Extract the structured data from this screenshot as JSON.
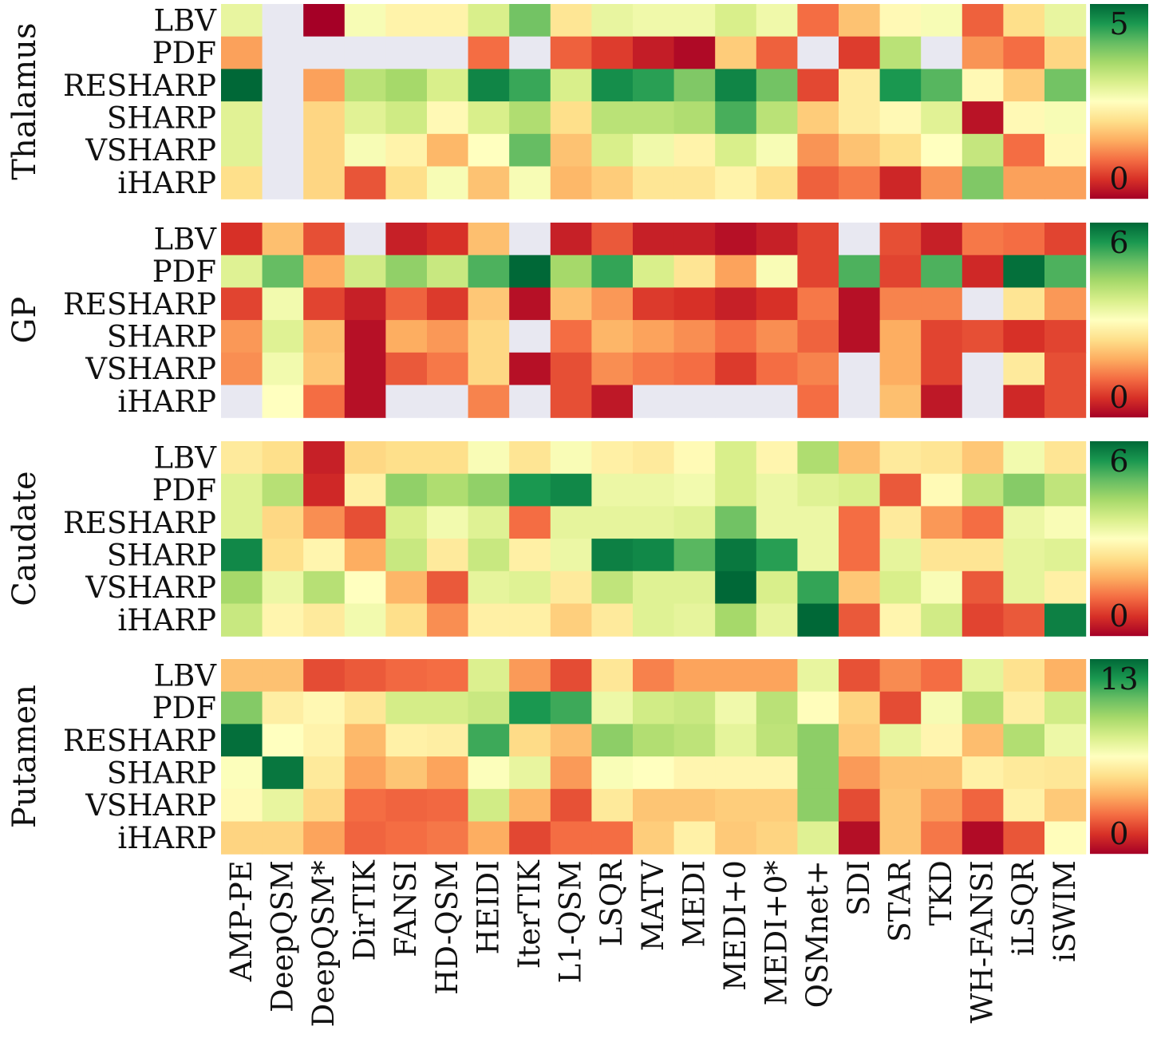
{
  "chart_data": {
    "type": "heatmap",
    "columns": [
      "AMP-PE",
      "DeepQSM",
      "DeepQSM*",
      "DirTIK",
      "FANSI",
      "HD-QSM",
      "HEIDI",
      "IterTIK",
      "L1-QSM",
      "LSQR",
      "MATV",
      "MEDI",
      "MEDI+0",
      "MEDI+0*",
      "QSMnet+",
      "SDI",
      "STAR",
      "TKD",
      "WH-FANSI",
      "iLSQR",
      "iSWIM"
    ],
    "rows": [
      "LBV",
      "PDF",
      "RESHARP",
      "SHARP",
      "VSHARP",
      "iHARP"
    ],
    "missing_color": "#e8e8f1",
    "colormap": [
      "#a50026",
      "#d73027",
      "#f46d43",
      "#fdae61",
      "#fee08b",
      "#ffffbf",
      "#d9ef8b",
      "#a6d96a",
      "#66bd63",
      "#1a9850",
      "#006837"
    ],
    "panels": [
      {
        "region": "Thalamus",
        "scale_max_label": "5",
        "scale_min_label": "0",
        "vmax": 5,
        "values": [
          [
            2.8,
            null,
            0.0,
            2.6,
            2.3,
            2.3,
            3.0,
            3.9,
            2.1,
            2.8,
            2.7,
            2.7,
            3.0,
            2.7,
            1.0,
            1.7,
            2.4,
            2.6,
            0.9,
            2.0,
            2.8
          ],
          [
            1.4,
            null,
            null,
            null,
            null,
            null,
            1.0,
            null,
            0.9,
            0.6,
            0.3,
            0.1,
            1.8,
            0.9,
            null,
            0.6,
            3.3,
            null,
            1.3,
            1.0,
            1.9
          ],
          [
            5.0,
            null,
            1.4,
            3.3,
            3.5,
            3.0,
            4.7,
            4.3,
            3.0,
            4.6,
            4.4,
            3.8,
            4.7,
            3.9,
            0.7,
            2.2,
            4.5,
            4.1,
            2.4,
            1.8,
            3.9
          ],
          [
            2.9,
            null,
            1.9,
            2.9,
            3.1,
            2.4,
            3.0,
            3.4,
            2.0,
            3.3,
            3.3,
            3.4,
            4.2,
            3.3,
            1.8,
            2.2,
            2.4,
            2.9,
            0.2,
            2.4,
            2.6
          ],
          [
            2.9,
            null,
            1.9,
            2.6,
            2.3,
            1.6,
            2.5,
            4.0,
            1.7,
            3.0,
            2.7,
            2.3,
            3.0,
            2.6,
            1.3,
            1.7,
            2.0,
            2.5,
            3.2,
            1.0,
            2.4
          ],
          [
            2.0,
            null,
            1.9,
            0.8,
            2.0,
            2.6,
            1.7,
            2.6,
            1.6,
            1.8,
            2.1,
            2.1,
            2.3,
            2.0,
            0.9,
            1.1,
            0.4,
            1.3,
            3.8,
            1.4,
            1.4
          ]
        ]
      },
      {
        "region": "GP",
        "scale_max_label": "6",
        "scale_min_label": "0",
        "vmax": 6,
        "values": [
          [
            0.6,
            2.0,
            0.9,
            null,
            0.4,
            0.6,
            2.0,
            null,
            0.4,
            1.0,
            0.4,
            0.4,
            0.2,
            0.4,
            0.8,
            null,
            0.9,
            0.4,
            1.3,
            1.2,
            0.8
          ],
          [
            3.5,
            4.8,
            1.8,
            3.7,
            4.4,
            3.8,
            5.0,
            6.0,
            4.2,
            5.2,
            3.6,
            2.5,
            1.7,
            3.1,
            0.8,
            5.0,
            0.8,
            5.0,
            0.5,
            5.9,
            5.0
          ],
          [
            0.8,
            3.2,
            0.8,
            0.4,
            1.1,
            0.7,
            2.1,
            0.2,
            2.0,
            1.6,
            0.7,
            0.6,
            0.4,
            0.6,
            1.3,
            0.2,
            1.4,
            1.4,
            null,
            2.5,
            1.6
          ],
          [
            1.6,
            3.5,
            2.0,
            0.2,
            1.8,
            1.6,
            2.3,
            null,
            1.2,
            1.9,
            1.7,
            1.5,
            1.2,
            1.5,
            1.1,
            0.2,
            1.8,
            0.8,
            0.9,
            0.6,
            0.8
          ],
          [
            1.5,
            3.2,
            2.1,
            0.2,
            1.0,
            1.3,
            2.3,
            0.2,
            0.9,
            1.5,
            1.3,
            1.2,
            0.7,
            1.2,
            1.4,
            null,
            1.8,
            0.8,
            null,
            2.6,
            0.9
          ],
          [
            null,
            3.0,
            1.2,
            0.2,
            null,
            null,
            1.4,
            null,
            0.9,
            0.3,
            null,
            null,
            null,
            null,
            1.2,
            null,
            2.0,
            0.3,
            null,
            0.5,
            0.9
          ]
        ]
      },
      {
        "region": "Caudate",
        "scale_max_label": "6",
        "scale_min_label": "0",
        "vmax": 6,
        "values": [
          [
            2.6,
            2.4,
            0.4,
            2.3,
            2.4,
            2.4,
            3.1,
            2.5,
            3.1,
            2.7,
            2.6,
            2.9,
            3.6,
            2.8,
            4.1,
            2.0,
            2.6,
            2.5,
            2.1,
            3.2,
            2.5
          ],
          [
            3.5,
            4.0,
            0.5,
            2.7,
            4.4,
            4.1,
            4.4,
            5.4,
            5.6,
            3.3,
            3.3,
            3.2,
            3.6,
            3.3,
            3.5,
            3.6,
            1.0,
            2.9,
            3.9,
            4.5,
            3.9
          ],
          [
            3.5,
            2.3,
            1.5,
            0.9,
            3.6,
            3.2,
            3.5,
            1.2,
            3.4,
            3.4,
            3.4,
            3.5,
            4.7,
            3.3,
            3.3,
            1.2,
            2.6,
            1.6,
            1.2,
            3.3,
            3.1
          ],
          [
            5.6,
            2.4,
            2.8,
            1.8,
            3.8,
            2.6,
            3.8,
            2.7,
            3.3,
            5.7,
            5.6,
            4.9,
            5.8,
            5.3,
            3.3,
            1.2,
            3.4,
            2.5,
            2.5,
            3.4,
            3.5
          ],
          [
            4.2,
            3.3,
            4.0,
            3.0,
            1.9,
            1.0,
            3.4,
            3.5,
            2.6,
            3.9,
            3.5,
            3.5,
            6.0,
            3.6,
            5.2,
            2.1,
            3.6,
            3.1,
            1.0,
            3.4,
            2.7
          ],
          [
            3.8,
            2.8,
            2.6,
            3.2,
            2.4,
            1.5,
            2.7,
            2.7,
            2.2,
            2.6,
            3.5,
            3.4,
            4.2,
            3.4,
            6.0,
            1.0,
            2.8,
            3.7,
            0.8,
            1.0,
            5.7
          ]
        ]
      },
      {
        "region": "Putamen",
        "scale_max_label": "13",
        "scale_min_label": "0",
        "vmax": 13,
        "values": [
          [
            4.4,
            4.4,
            1.9,
            2.2,
            2.5,
            2.6,
            7.7,
            3.5,
            1.9,
            5.5,
            3.0,
            3.7,
            3.7,
            3.7,
            7.3,
            2.0,
            3.2,
            2.6,
            7.4,
            5.3,
            4.0
          ],
          [
            9.8,
            5.8,
            6.2,
            5.5,
            7.9,
            7.9,
            8.2,
            11.7,
            11.1,
            7.1,
            8.0,
            8.2,
            7.0,
            8.6,
            6.4,
            4.9,
            1.9,
            6.8,
            8.8,
            5.8,
            8.0
          ],
          [
            12.8,
            6.5,
            6.0,
            4.2,
            5.9,
            5.8,
            11.1,
            5.1,
            4.3,
            9.6,
            8.8,
            8.5,
            7.4,
            8.5,
            9.6,
            4.6,
            7.3,
            6.1,
            4.3,
            8.8,
            7.1
          ],
          [
            6.6,
            12.6,
            5.6,
            3.7,
            4.5,
            3.7,
            6.6,
            7.3,
            3.5,
            6.7,
            6.5,
            6.1,
            6.1,
            6.1,
            9.6,
            3.5,
            4.4,
            4.4,
            5.9,
            5.6,
            5.5
          ],
          [
            6.3,
            7.3,
            5.0,
            2.6,
            2.4,
            2.5,
            8.0,
            4.1,
            2.0,
            5.6,
            4.5,
            4.5,
            4.7,
            4.7,
            9.6,
            1.9,
            4.5,
            3.5,
            2.4,
            5.9,
            4.6
          ],
          [
            4.9,
            4.9,
            3.7,
            2.4,
            2.6,
            2.8,
            3.9,
            1.8,
            2.6,
            2.6,
            4.7,
            5.9,
            4.6,
            4.9,
            7.6,
            0.4,
            4.5,
            2.8,
            0.3,
            2.1,
            6.4
          ]
        ]
      }
    ]
  }
}
